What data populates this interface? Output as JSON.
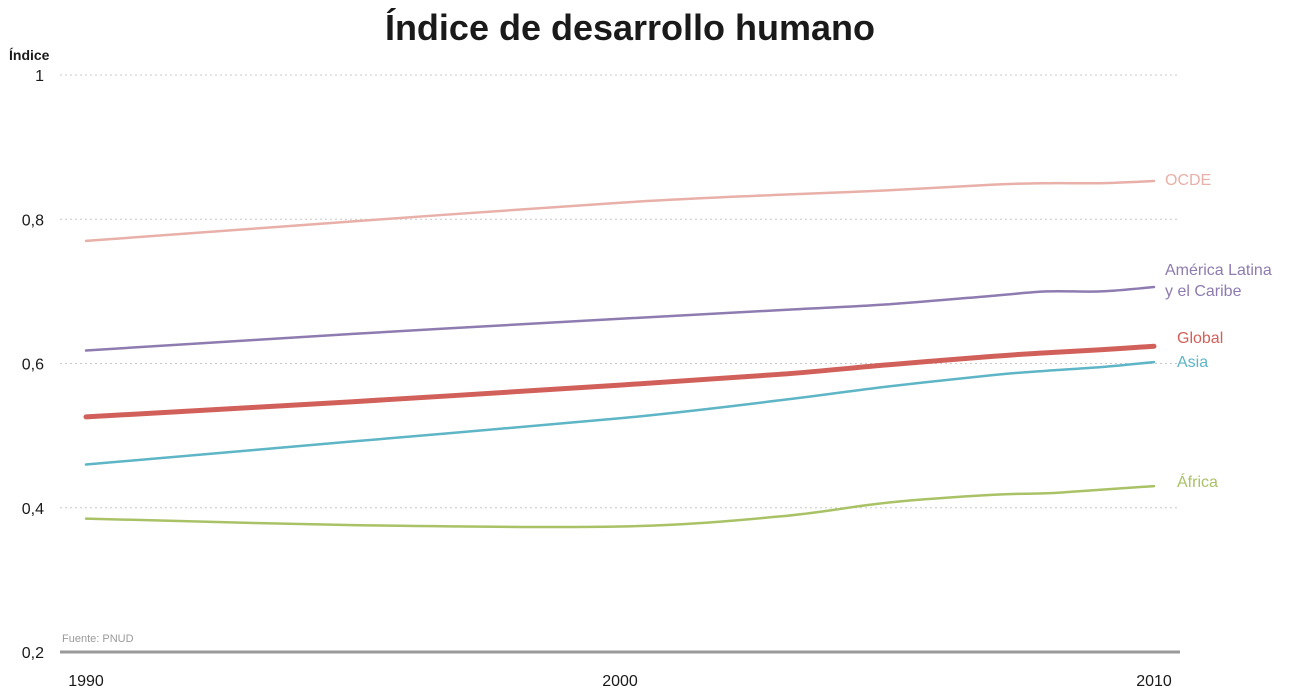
{
  "chart_data": {
    "type": "line",
    "title": "Índice de desarrollo humano",
    "ylabel": "Índice",
    "xlabel": "",
    "source": "Fuente: PNUD",
    "xlim": [
      1990,
      2010
    ],
    "ylim": [
      0.2,
      1
    ],
    "x_ticks": [
      "1990",
      "2000",
      "2010"
    ],
    "y_ticks": [
      "0,2",
      "0,4",
      "0,6",
      "0,8",
      "1"
    ],
    "grid": true,
    "legend": "inline-right",
    "x": [
      1990,
      1995,
      2000,
      2003,
      2005,
      2007,
      2008,
      2009,
      2010
    ],
    "series": [
      {
        "name": "OCDE",
        "label_lines": [
          "OCDE"
        ],
        "color": "#e8b0a8",
        "width": 2.5,
        "values": [
          0.77,
          0.797,
          0.823,
          0.834,
          0.84,
          0.848,
          0.85,
          0.85,
          0.853
        ]
      },
      {
        "name": "América Latina y el Caribe",
        "label_lines": [
          "América Latina",
          "y el Caribe"
        ],
        "color": "#8e7bb0",
        "width": 2.5,
        "values": [
          0.618,
          0.641,
          0.662,
          0.674,
          0.682,
          0.694,
          0.7,
          0.7,
          0.706
        ]
      },
      {
        "name": "Global",
        "label_lines": [
          "Global"
        ],
        "color": "#d2605a",
        "width": 5,
        "values": [
          0.526,
          0.547,
          0.57,
          0.585,
          0.598,
          0.61,
          0.615,
          0.619,
          0.624
        ]
      },
      {
        "name": "Asia",
        "label_lines": [
          "Asia"
        ],
        "color": "#5db5c6",
        "width": 2.5,
        "values": [
          0.46,
          0.492,
          0.524,
          0.549,
          0.568,
          0.584,
          0.59,
          0.595,
          0.602
        ]
      },
      {
        "name": "África",
        "label_lines": [
          "África"
        ],
        "color": "#a9c266",
        "width": 2.5,
        "values": [
          0.385,
          0.376,
          0.374,
          0.388,
          0.407,
          0.418,
          0.42,
          0.425,
          0.43
        ]
      }
    ]
  }
}
